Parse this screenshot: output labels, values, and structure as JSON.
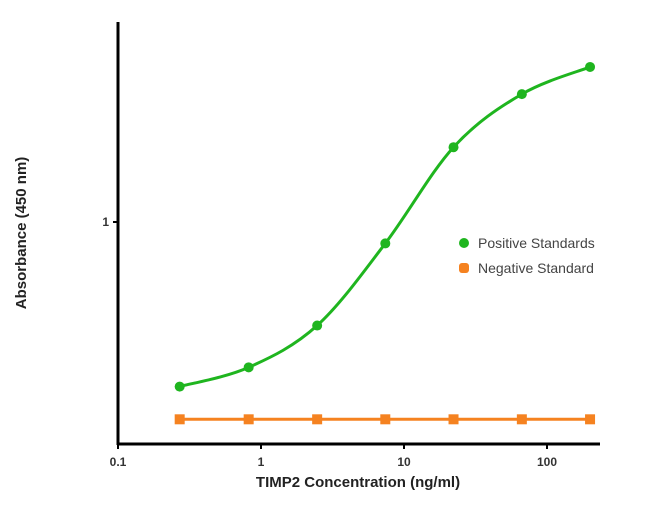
{
  "chart_data": {
    "type": "line",
    "title": "",
    "xlabel": "TIMP2 Concentration (ng/ml)",
    "ylabel": "Absorbance (450 nm)",
    "x_scale": "log",
    "y_scale": "log",
    "xlim": [
      0.1,
      300
    ],
    "ylim": [
      0.1,
      8
    ],
    "x_ticks": [
      {
        "value": 0.1,
        "label": "0.1"
      },
      {
        "value": 1,
        "label": "1"
      },
      {
        "value": 10,
        "label": "10"
      },
      {
        "value": 100,
        "label": "100"
      }
    ],
    "y_ticks": [
      {
        "value": 1,
        "label": "1"
      }
    ],
    "grid": false,
    "legend_position": "right",
    "series": [
      {
        "name": "Positive Standards",
        "color": "#1fb51f",
        "marker": "circle",
        "x": [
          0.27,
          0.82,
          2.47,
          7.4,
          22.2,
          66.7,
          200
        ],
        "y": [
          0.18,
          0.22,
          0.34,
          0.8,
          2.18,
          3.79,
          5.03
        ]
      },
      {
        "name": "Negative Standard",
        "color": "#f58220",
        "marker": "square",
        "x": [
          0.27,
          0.82,
          2.47,
          7.4,
          22.2,
          66.7,
          200
        ],
        "y": [
          0.128,
          0.128,
          0.128,
          0.128,
          0.128,
          0.128,
          0.128
        ]
      }
    ]
  }
}
